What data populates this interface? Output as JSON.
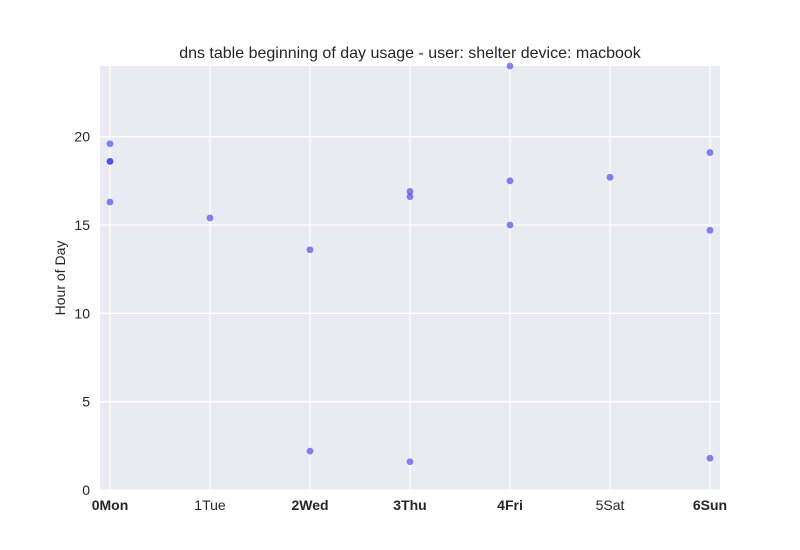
{
  "chart_data": {
    "type": "scatter",
    "title": "dns table beginning of day usage -  user: shelter device: macbook",
    "xlabel": "",
    "ylabel": "Hour of Day",
    "categories": [
      "0Mon",
      "1Tue",
      "2Wed",
      "3Thu",
      "4Fri",
      "5Sat",
      "6Sun"
    ],
    "xlim": [
      -0.1,
      6.1
    ],
    "ylim": [
      0,
      24
    ],
    "yticks": [
      0,
      5,
      10,
      15,
      20
    ],
    "grid": true,
    "point_color": "#3333e6",
    "background_color": "#eaeaf2",
    "points": [
      {
        "x": 0,
        "y": 19.6
      },
      {
        "x": 0,
        "y": 18.6
      },
      {
        "x": 0,
        "y": 18.6
      },
      {
        "x": 0,
        "y": 16.3
      },
      {
        "x": 1,
        "y": 15.4
      },
      {
        "x": 2,
        "y": 13.6
      },
      {
        "x": 2,
        "y": 2.2
      },
      {
        "x": 3,
        "y": 16.9
      },
      {
        "x": 3,
        "y": 16.6
      },
      {
        "x": 3,
        "y": 1.6
      },
      {
        "x": 4,
        "y": 24.0
      },
      {
        "x": 4,
        "y": 17.5
      },
      {
        "x": 4,
        "y": 15.0
      },
      {
        "x": 5,
        "y": 17.7
      },
      {
        "x": 6,
        "y": 19.1
      },
      {
        "x": 6,
        "y": 14.7
      },
      {
        "x": 6,
        "y": 1.8
      }
    ]
  }
}
